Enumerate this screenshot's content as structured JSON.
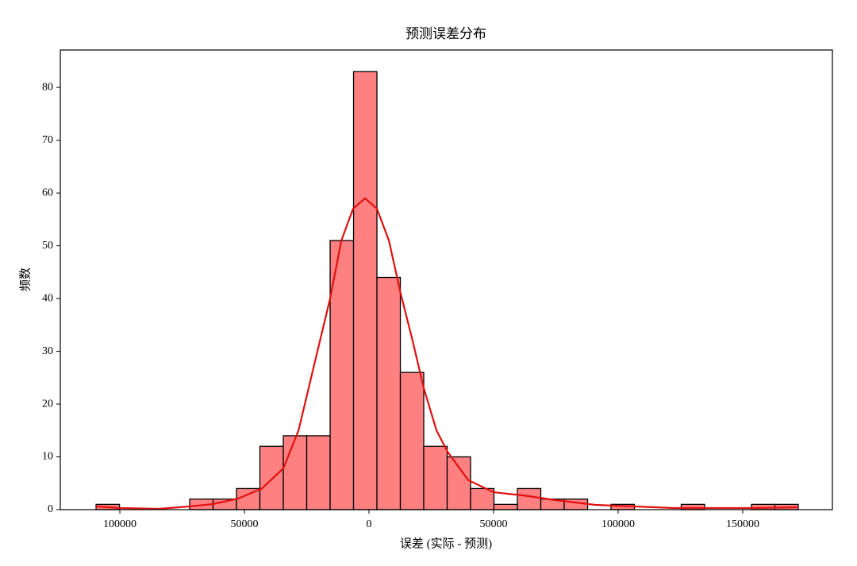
{
  "chart_data": {
    "type": "histogram",
    "title": "预测误差分布",
    "xlabel": "误差 (实际 - 预测)",
    "ylabel": "频数",
    "bins": [
      -109550,
      -100155,
      -90760,
      -81365,
      -71970,
      -62575,
      -53180,
      -43785,
      -34390,
      -24995,
      -15600,
      -6205,
      3190,
      12585,
      21980,
      31375,
      40770,
      50165,
      59560,
      68955,
      78350,
      87745,
      97140,
      106535,
      115930,
      125325,
      134720,
      144115,
      153510,
      162905,
      172300
    ],
    "values": [
      1,
      0,
      0,
      0,
      2,
      2,
      4,
      12,
      14,
      14,
      51,
      83,
      44,
      26,
      12,
      10,
      4,
      1,
      4,
      2,
      2,
      0,
      1,
      0,
      0,
      1,
      0,
      0,
      1,
      1
    ],
    "color": "#ff8080",
    "edgecolor": "#000000",
    "kde": {
      "x": [
        -109550,
        -100000,
        -84400,
        -72300,
        -62600,
        -52500,
        -43000,
        -34400,
        -28300,
        -20700,
        -15600,
        -11100,
        -6400,
        -1600,
        3200,
        8000,
        12700,
        17500,
        22000,
        27100,
        31500,
        39800,
        50000,
        62100,
        74800,
        90800,
        106700,
        122600,
        138500,
        154500,
        172300
      ],
      "values": [
        0.6,
        0.3,
        0.15,
        0.6,
        1.05,
        2.1,
        4,
        7.8,
        15,
        30,
        40,
        51,
        57,
        59,
        57,
        51,
        41,
        32,
        23,
        15,
        11,
        5.6,
        3.3,
        2.7,
        1.8,
        0.9,
        0.6,
        0.3,
        0.3,
        0.3,
        0.45
      ],
      "color": "#e01010"
    },
    "xlim": [
      -123900,
      186000
    ],
    "ylim": [
      0,
      87.1
    ],
    "xticks": [
      {
        "value": -100000,
        "label": "100000"
      },
      {
        "value": -50000,
        "label": "50000"
      },
      0,
      50000,
      100000,
      150000
    ],
    "yticks": [
      0,
      10,
      20,
      30,
      40,
      50,
      60,
      70,
      80
    ]
  }
}
